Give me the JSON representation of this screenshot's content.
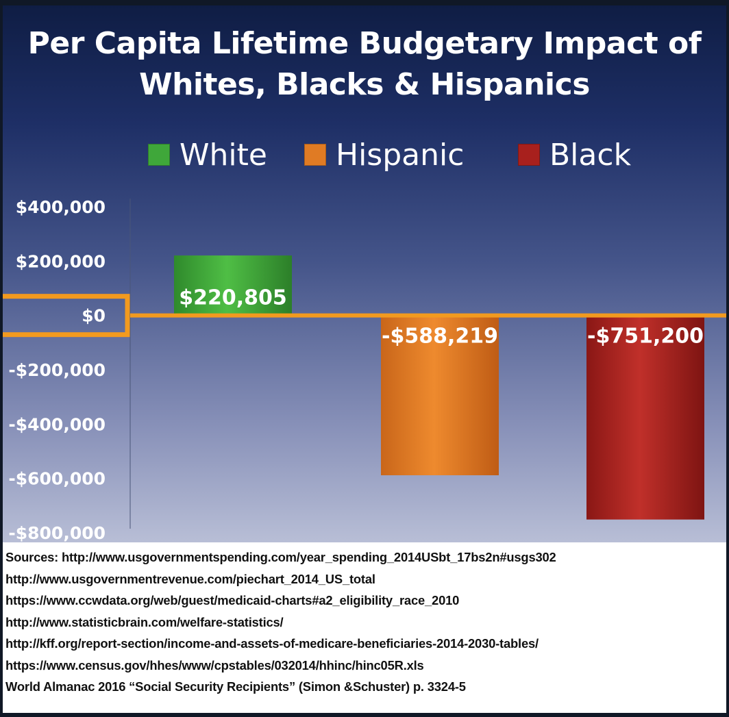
{
  "chart_data": {
    "type": "bar",
    "title_lines": [
      "Per Capita Lifetime Budgetary Impact of",
      "Whites, Blacks & Hispanics"
    ],
    "categories": [
      "White",
      "Hispanic",
      "Black"
    ],
    "values": [
      220805,
      -588219,
      -751200
    ],
    "value_labels": [
      "$220,805",
      "-$588,219",
      "-$751,200"
    ],
    "legend": [
      "White",
      "Hispanic",
      "Black"
    ],
    "colors": [
      "#3fa73a",
      "#e07b24",
      "#a8201d"
    ],
    "highlight_color": "#f29a1f",
    "ylim": [
      -800000,
      400000
    ],
    "yticks": [
      400000,
      200000,
      0,
      -200000,
      -400000,
      -600000,
      -800000
    ],
    "ytick_labels": [
      "$400,000",
      "$200,000",
      "$0",
      "-$200,000",
      "-$400,000",
      "-$600,000",
      "-$800,000"
    ],
    "xlabel": "",
    "ylabel": ""
  },
  "sources": [
    "Sources: http://www.usgovernmentspending.com/year_spending_2014USbt_17bs2n#usgs302",
    "http://www.usgovernmentrevenue.com/piechart_2014_US_total",
    "https://www.ccwdata.org/web/guest/medicaid-charts#a2_eligibility_race_2010",
    "http://www.statisticbrain.com/welfare-statistics/",
    "http://kff.org/report-section/income-and-assets-of-medicare-beneficiaries-2014-2030-tables/",
    "https://www.census.gov/hhes/www/cpstables/032014/hhinc/hinc05R.xls",
    "World Almanac 2016 “Social Security Recipients” (Simon &Schuster) p. 3324-5"
  ]
}
